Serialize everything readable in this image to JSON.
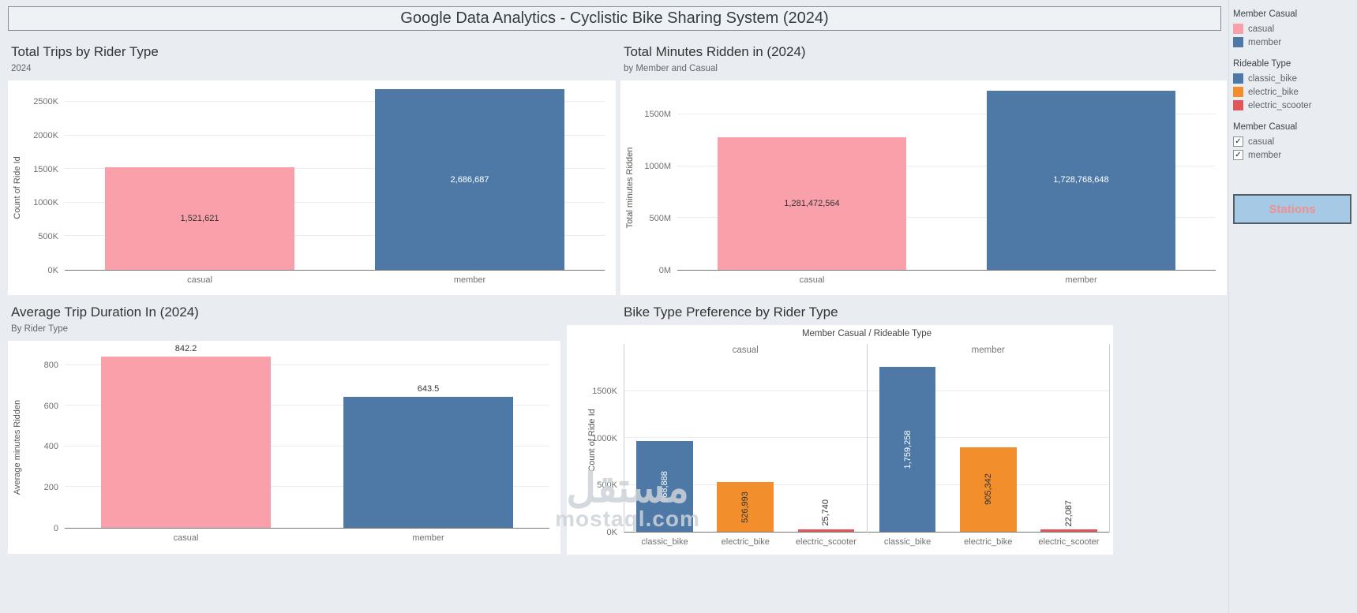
{
  "header": {
    "title": "Google Data Analytics - Cyclistic Bike Sharing System (2024)"
  },
  "watermark": {
    "line1": "مستقل",
    "line2": "mostaql.com"
  },
  "sidebar": {
    "legend_member_casual": {
      "title": "Member Casual",
      "items": [
        {
          "label": "casual",
          "color": "#f9a0ab"
        },
        {
          "label": "member",
          "color": "#4e79a7"
        }
      ]
    },
    "legend_rideable_type": {
      "title": "Rideable Type",
      "items": [
        {
          "label": "classic_bike",
          "color": "#4e79a7"
        },
        {
          "label": "electric_bike",
          "color": "#f28e2b"
        },
        {
          "label": "electric_scooter",
          "color": "#e15759"
        }
      ]
    },
    "filter_member_casual": {
      "title": "Member Casual",
      "items": [
        {
          "label": "casual",
          "checked": true,
          "glyph": "✓"
        },
        {
          "label": "member",
          "checked": true,
          "glyph": "✓"
        }
      ]
    },
    "stations_button": "Stations"
  },
  "chart_data": [
    {
      "type": "bar",
      "title": "Total Trips by Rider Type",
      "subtitle": "2024",
      "xlabel": "",
      "ylabel": "Count of Ride Id",
      "categories": [
        "casual",
        "member"
      ],
      "values": [
        1521621,
        2686687
      ],
      "value_labels": [
        "1,521,621",
        "2,686,687"
      ],
      "colors": [
        "#f9a0ab",
        "#4e79a7"
      ],
      "label_colors": [
        "#333333",
        "#ffffff"
      ],
      "yticks": {
        "labels": [
          "0K",
          "500K",
          "1000K",
          "1500K",
          "2000K",
          "2500K"
        ],
        "values": [
          0,
          500000,
          1000000,
          1500000,
          2000000,
          2500000
        ]
      },
      "ylim": [
        0,
        2700000
      ],
      "grid": true,
      "legend_position": "right"
    },
    {
      "type": "bar",
      "title": "Total Minutes Ridden in (2024)",
      "subtitle": "by Member and Casual",
      "xlabel": "",
      "ylabel": "Total minutes Ridden",
      "categories": [
        "casual",
        "member"
      ],
      "values": [
        1281472564,
        1728768648
      ],
      "value_labels": [
        "1,281,472,564",
        "1,728,768,648"
      ],
      "colors": [
        "#f9a0ab",
        "#4e79a7"
      ],
      "label_colors": [
        "#333333",
        "#ffffff"
      ],
      "yticks": {
        "labels": [
          "0M",
          "500M",
          "1000M",
          "1500M"
        ],
        "values": [
          0,
          500000000,
          1000000000,
          1500000000
        ]
      },
      "ylim": [
        0,
        1750000000
      ],
      "grid": true
    },
    {
      "type": "bar",
      "title": "Average Trip Duration In (2024)",
      "subtitle": "By Rider Type",
      "xlabel": "",
      "ylabel": "Average minutes Ridden",
      "categories": [
        "casual",
        "member"
      ],
      "values": [
        842.2,
        643.5
      ],
      "value_labels": [
        "842.2",
        "643.5"
      ],
      "colors": [
        "#f9a0ab",
        "#4e79a7"
      ],
      "label_colors": [
        "#333333",
        "#333333"
      ],
      "label_position": "above",
      "yticks": {
        "labels": [
          "0",
          "200",
          "400",
          "600",
          "800"
        ],
        "values": [
          0,
          200,
          400,
          600,
          800
        ]
      },
      "ylim": [
        0,
        880
      ],
      "grid": true
    },
    {
      "type": "grouped_bar",
      "title": "Bike Type Preference by Rider Type",
      "column_header": "Member Casual / Rideable Type",
      "ylabel": "Count of Ride Id",
      "rotate_labels": true,
      "colors": [
        "#4e79a7",
        "#f28e2b",
        "#e15759"
      ],
      "label_colors": [
        "#ffffff",
        "#333333",
        "#333333"
      ],
      "groups": [
        {
          "name": "casual",
          "categories": [
            "classic_bike",
            "electric_bike",
            "electric_scooter"
          ],
          "values": [
            968888,
            526993,
            25740
          ],
          "value_labels": [
            "968,888",
            "526,993",
            "25,740"
          ]
        },
        {
          "name": "member",
          "categories": [
            "classic_bike",
            "electric_bike",
            "electric_scooter"
          ],
          "values": [
            1759258,
            905342,
            22087
          ],
          "value_labels": [
            "1,759,258",
            "905,342",
            "22,087"
          ]
        }
      ],
      "yticks": {
        "labels": [
          "0K",
          "500K",
          "1000K",
          "1500K"
        ],
        "values": [
          0,
          500000,
          1000000,
          1500000
        ]
      },
      "ylim": [
        0,
        1820000
      ],
      "grid": true
    }
  ]
}
